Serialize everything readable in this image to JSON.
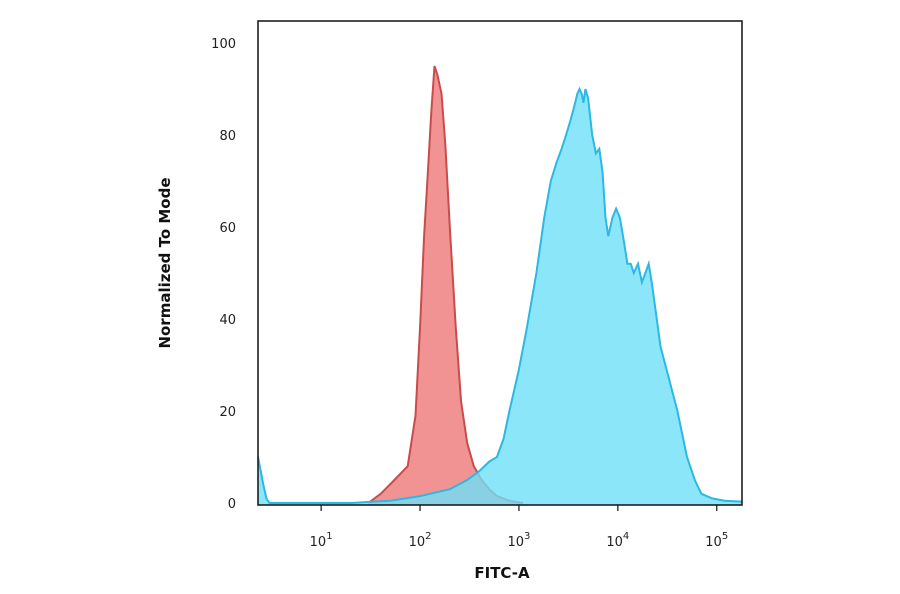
{
  "chart_data": {
    "type": "area",
    "xlabel": "FITC-A",
    "ylabel": "Normalized To Mode",
    "x_scale": "log",
    "xlim": [
      2.3,
      180000
    ],
    "ylim": [
      0,
      100
    ],
    "grid": false,
    "x_ticks": [
      {
        "value": 10,
        "base": "10",
        "exp": "1"
      },
      {
        "value": 100,
        "base": "10",
        "exp": "2"
      },
      {
        "value": 1000,
        "base": "10",
        "exp": "3"
      },
      {
        "value": 10000,
        "base": "10",
        "exp": "4"
      },
      {
        "value": 100000,
        "base": "10",
        "exp": "5"
      }
    ],
    "y_ticks": [
      "0",
      "20",
      "40",
      "60",
      "80",
      "100"
    ],
    "series": [
      {
        "color": "#f08080",
        "stroke": "#c84c4c",
        "opacity": 0.85,
        "x": [
          30,
          40,
          55,
          75,
          90,
          100,
          110,
          120,
          130,
          140,
          150,
          165,
          180,
          200,
          230,
          260,
          300,
          350,
          420,
          500,
          600,
          800,
          1100
        ],
        "y": [
          0,
          2,
          5,
          8,
          19,
          38,
          58,
          72,
          85,
          95,
          93,
          89,
          78,
          60,
          38,
          22,
          13,
          8,
          5,
          3,
          1.5,
          0.5,
          0
        ]
      },
      {
        "color": "#6fe0f8",
        "stroke": "#2cb8e2",
        "opacity": 0.8,
        "x": [
          2.3,
          2.4,
          2.6,
          2.8,
          3.0,
          7,
          20,
          50,
          100,
          200,
          300,
          400,
          500,
          600,
          700,
          800,
          1000,
          1200,
          1500,
          1800,
          2100,
          2400,
          2700,
          3000,
          3300,
          3600,
          3900,
          4100,
          4300,
          4500,
          4700,
          5000,
          5500,
          6000,
          6500,
          7000,
          7500,
          8000,
          8800,
          9600,
          10500,
          11500,
          12500,
          13500,
          14500,
          16000,
          17500,
          19000,
          20500,
          22000,
          24000,
          27000,
          32000,
          40000,
          50000,
          60000,
          70000,
          90000,
          120000,
          180000
        ],
        "y": [
          10,
          8,
          4,
          1,
          0,
          0,
          0,
          0.5,
          1.5,
          3,
          5,
          7,
          9,
          10,
          14,
          20,
          29,
          38,
          50,
          62,
          70,
          74,
          77,
          80,
          83,
          86,
          89,
          90,
          89,
          87,
          90,
          88,
          80,
          76,
          77,
          72,
          62,
          58,
          62,
          64,
          62,
          57,
          52,
          52,
          50,
          52,
          48,
          50,
          52,
          48,
          42,
          34,
          28,
          20,
          10,
          5,
          2,
          1,
          0.5,
          0.3
        ]
      }
    ]
  }
}
